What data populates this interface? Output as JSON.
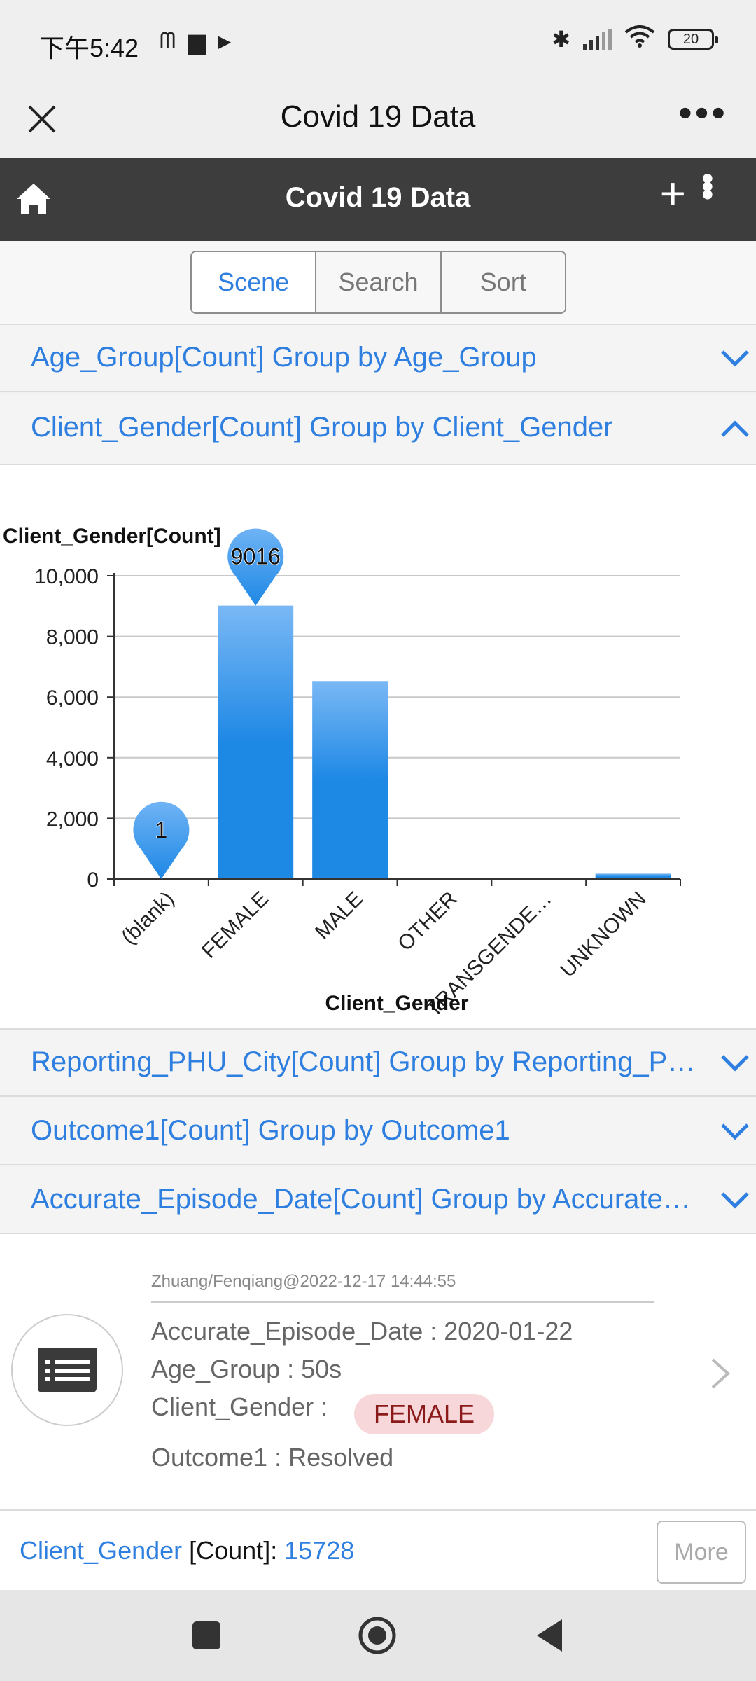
{
  "status_bar": {
    "time": "下午5:42",
    "battery": "20"
  },
  "window": {
    "title": "Covid 19 Data"
  },
  "app_header": {
    "title": "Covid 19 Data"
  },
  "tabs": [
    {
      "label": "Scene",
      "active": true
    },
    {
      "label": "Search",
      "active": false
    },
    {
      "label": "Sort",
      "active": false
    }
  ],
  "groups": [
    {
      "label": "Age_Group[Count] Group by Age_Group",
      "expanded": false
    },
    {
      "label": "Client_Gender[Count] Group by Client_Gender",
      "expanded": true
    },
    {
      "label": "Reporting_PHU_City[Count] Group by Reporting_P…",
      "expanded": false
    },
    {
      "label": "Outcome1[Count] Group by Outcome1",
      "expanded": false
    },
    {
      "label": "Accurate_Episode_Date[Count] Group by Accurate…",
      "expanded": false
    }
  ],
  "chart_data": {
    "type": "bar",
    "ylabel": "Client_Gender[Count]",
    "xlabel": "Client_Gender",
    "categories": [
      "(blank)",
      "FEMALE",
      "MALE",
      "OTHER",
      "TRANSGENDE…",
      "UNKNOWN"
    ],
    "values": [
      1,
      9016,
      6530,
      3,
      2,
      176
    ],
    "ylim": [
      0,
      10000
    ],
    "yticks": [
      0,
      2000,
      4000,
      6000,
      8000,
      10000
    ],
    "ytick_labels": [
      "0",
      "2,000",
      "4,000",
      "6,000",
      "8,000",
      "10,000"
    ],
    "markers": [
      {
        "category": "(blank)",
        "label": "1"
      },
      {
        "category": "FEMALE",
        "label": "9016"
      }
    ],
    "grid": true,
    "bar_color_top": "#7ab8f5",
    "bar_color_bottom": "#1e88e5"
  },
  "record": {
    "meta": "Zhuang/Fenqiang@2022-12-17 14:44:55",
    "accurate_episode_date": "Accurate_Episode_Date : 2020-01-22",
    "age_group": "Age_Group : 50s",
    "client_gender_label": "Client_Gender :",
    "client_gender_value": "FEMALE",
    "outcome": "Outcome1 : Resolved"
  },
  "footer": {
    "field": "Client_Gender",
    "agg": " [Count]: ",
    "count": "15728",
    "more_label": "More"
  },
  "colors": {
    "accent": "#2f7fe0",
    "header_bg": "#3d3d3d",
    "badge_bg": "#f8d7da"
  }
}
